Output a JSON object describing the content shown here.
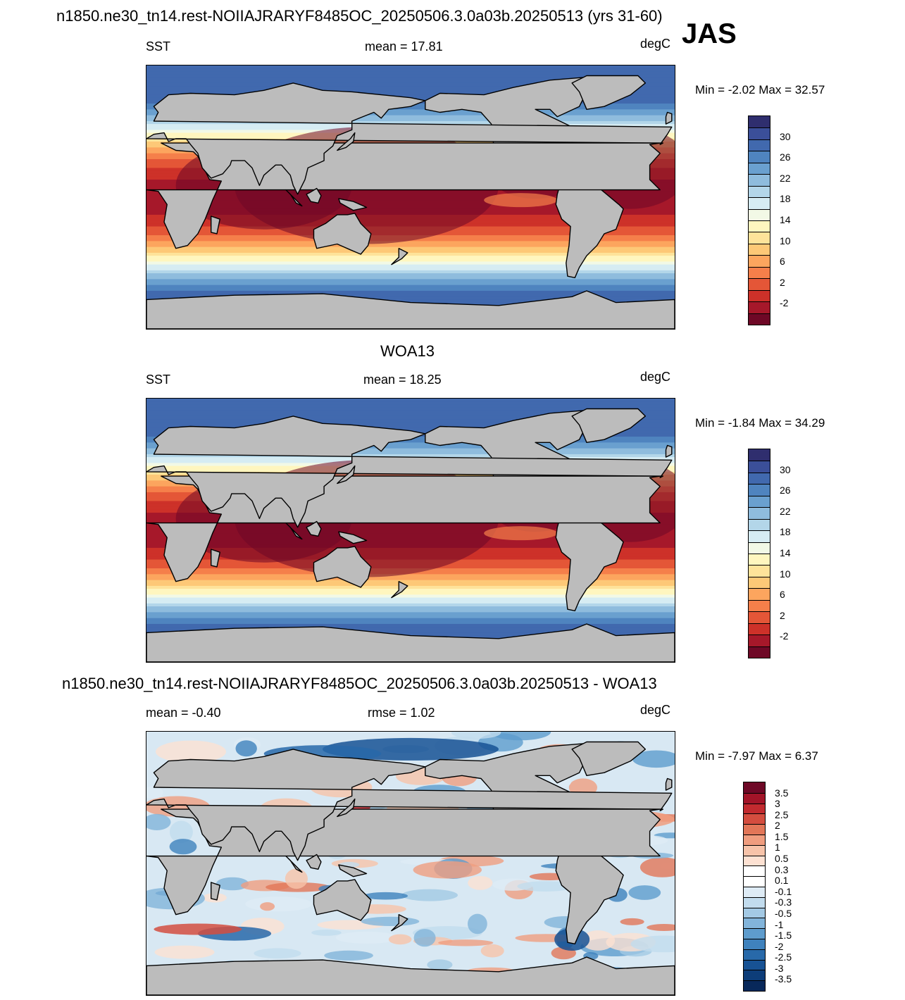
{
  "figure": {
    "season": "JAS"
  },
  "panels": [
    {
      "id": "model",
      "title": "n1850.ne30_tn14.rest-NOIIAJRARYF8485OC_20250506.3.0a03b.20250513 (yrs 31-60)",
      "left_label": "SST",
      "center_label": "mean =  17.81",
      "right_label": "degC",
      "minmax": "Min =  -2.02 Max =  32.57",
      "kind": "absolute"
    },
    {
      "id": "obs",
      "title": "WOA13",
      "left_label": "SST",
      "center_label": "mean =  18.25",
      "right_label": "degC",
      "minmax": "Min =  -1.84 Max =  34.29",
      "kind": "absolute"
    },
    {
      "id": "diff",
      "title": "n1850.ne30_tn14.rest-NOIIAJRARYF8485OC_20250506.3.0a03b.20250513 - WOA13",
      "left_label": "mean =  -0.40",
      "center_label": "rmse =   1.02",
      "right_label": "degC",
      "minmax": "Min =  -7.97 Max =   6.37",
      "kind": "difference"
    }
  ],
  "colorbars": {
    "absolute": {
      "colors": [
        "#2f2e6e",
        "#3b4f99",
        "#4169ae",
        "#4f84bf",
        "#6aa0cf",
        "#8fbcdd",
        "#b3d6e9",
        "#d6ecf3",
        "#f2f9e6",
        "#fff6bf",
        "#fee39a",
        "#fdc877",
        "#fca55e",
        "#f57f4a",
        "#e45637",
        "#cd3129",
        "#a6182a",
        "#6e0826"
      ],
      "labels": [
        "30",
        "26",
        "22",
        "18",
        "14",
        "10",
        "6",
        "2",
        "-2"
      ]
    },
    "difference": {
      "colors": [
        "#6e0826",
        "#a21428",
        "#c22a2f",
        "#d44d3f",
        "#e27658",
        "#f09d7f",
        "#f7c3a9",
        "#fde1d2",
        "#ffffff",
        "#ffffff",
        "#deebf5",
        "#c2dcee",
        "#a3c9e4",
        "#82b4da",
        "#5e9ccd",
        "#3f82bd",
        "#2869a9",
        "#175294",
        "#0d3d79",
        "#08285a"
      ],
      "labels": [
        "3.5",
        "3",
        "2.5",
        "2",
        "1.5",
        "1",
        "0.5",
        "0.3",
        "0.1",
        "-0.1",
        "-0.3",
        "-0.5",
        "-1",
        "-1.5",
        "-2",
        "-2.5",
        "-3",
        "-3.5"
      ]
    }
  }
}
